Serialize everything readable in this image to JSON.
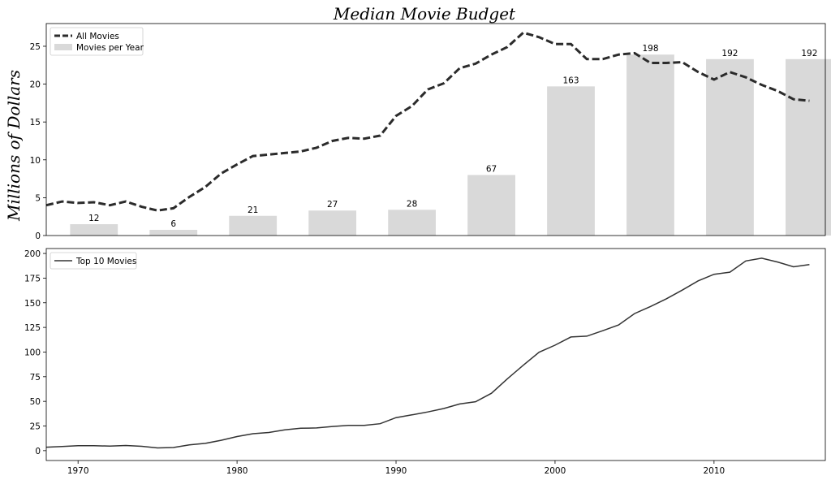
{
  "chart_data": [
    {
      "type": "bar+line",
      "title": "Median Movie Budget",
      "ylabel": "Millions of Dollars",
      "xlim": [
        1968,
        2017
      ],
      "ylim": [
        0,
        28
      ],
      "yticks": [
        0,
        5,
        10,
        15,
        20,
        25
      ],
      "legend": {
        "placement": "upper-left",
        "entries": [
          "All Movies",
          "Movies per Year"
        ]
      },
      "bars": {
        "name": "Movies per Year",
        "color": "#d9d9d9",
        "x": [
          1971,
          1976,
          1981,
          1986,
          1991,
          1996,
          2001,
          2006,
          2011,
          2016
        ],
        "heights": [
          1.5,
          0.75,
          2.6,
          3.3,
          3.4,
          8.0,
          19.7,
          23.9,
          23.3,
          23.3
        ],
        "labels": [
          "12",
          "6",
          "21",
          "27",
          "28",
          "67",
          "163",
          "198",
          "192",
          "192"
        ]
      },
      "series": [
        {
          "name": "All Movies",
          "style": "dashed",
          "color": "#2b2b2b",
          "x": [
            1968,
            1969,
            1970,
            1971,
            1972,
            1973,
            1974,
            1975,
            1976,
            1977,
            1978,
            1979,
            1980,
            1981,
            1982,
            1983,
            1984,
            1985,
            1986,
            1987,
            1988,
            1989,
            1990,
            1991,
            1992,
            1993,
            1994,
            1995,
            1996,
            1997,
            1998,
            1999,
            2000,
            2001,
            2002,
            2003,
            2004,
            2005,
            2006,
            2007,
            2008,
            2009,
            2010,
            2011,
            2012,
            2013,
            2014,
            2015,
            2016
          ],
          "y": [
            4.0,
            4.5,
            4.3,
            4.4,
            4.0,
            4.5,
            3.8,
            3.3,
            3.6,
            5.1,
            6.4,
            8.2,
            9.4,
            10.5,
            10.7,
            10.9,
            11.1,
            11.6,
            12.5,
            12.9,
            12.8,
            13.2,
            15.8,
            17.1,
            19.3,
            20.1,
            22.1,
            22.7,
            23.9,
            24.9,
            26.8,
            26.2,
            25.3,
            25.3,
            23.3,
            23.3,
            23.9,
            24.1,
            22.8,
            22.8,
            22.9,
            21.6,
            20.6,
            21.6,
            20.9,
            19.9,
            19.1,
            18.0,
            17.8
          ]
        }
      ]
    },
    {
      "type": "line",
      "xlim": [
        1968,
        2017
      ],
      "ylim": [
        -10,
        205
      ],
      "yticks": [
        0,
        25,
        50,
        75,
        100,
        125,
        150,
        175,
        200
      ],
      "xticks": [
        1970,
        1980,
        1990,
        2000,
        2010
      ],
      "legend": {
        "placement": "upper-left",
        "entries": [
          "Top 10 Movies"
        ]
      },
      "series": [
        {
          "name": "Top 10 Movies",
          "style": "solid",
          "color": "#333333",
          "x": [
            1968,
            1969,
            1970,
            1971,
            1972,
            1973,
            1974,
            1975,
            1976,
            1977,
            1978,
            1979,
            1980,
            1981,
            1982,
            1983,
            1984,
            1985,
            1986,
            1987,
            1988,
            1989,
            1990,
            1991,
            1992,
            1993,
            1994,
            1995,
            1996,
            1997,
            1998,
            1999,
            2000,
            2001,
            2002,
            2003,
            2004,
            2005,
            2006,
            2007,
            2008,
            2009,
            2010,
            2011,
            2012,
            2013,
            2014,
            2015,
            2016
          ],
          "y": [
            3.5,
            4.2,
            5.0,
            5.1,
            4.6,
            5.2,
            4.4,
            2.8,
            3.2,
            5.8,
            7.4,
            10.5,
            14.3,
            17.2,
            18.4,
            21.1,
            22.7,
            23.0,
            24.5,
            25.7,
            25.6,
            27.3,
            33.5,
            36.3,
            39.3,
            42.7,
            47.3,
            49.6,
            58.2,
            72.9,
            86.6,
            99.8,
            107.0,
            115.3,
            116.1,
            121.6,
            127.5,
            139.0,
            146.2,
            154.0,
            162.8,
            172.2,
            178.9,
            181.0,
            192.4,
            195.2,
            191.3,
            186.5,
            188.8
          ]
        }
      ]
    }
  ]
}
